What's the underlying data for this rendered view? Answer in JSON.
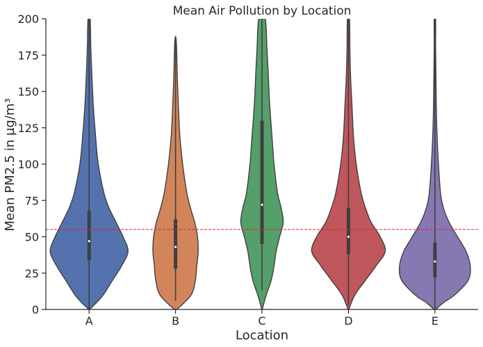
{
  "chart_data": {
    "type": "violin",
    "title": "Mean Air Pollution by Location",
    "xlabel": "Location",
    "ylabel": "Mean PM2.5 in µg/m³",
    "ylim": [
      0,
      200
    ],
    "yticks": [
      0,
      25,
      50,
      75,
      100,
      125,
      150,
      175,
      200
    ],
    "categories": [
      "A",
      "B",
      "C",
      "D",
      "E"
    ],
    "reference_line": {
      "y": 55,
      "color": "#d62728",
      "style": "dashed"
    },
    "grid": false,
    "series": [
      {
        "category": "A",
        "color": "#5472ad",
        "median": 47,
        "q1": 34,
        "q3": 68,
        "whisker_low": 0,
        "whisker_high": 200,
        "density": [
          [
            0,
            0.5
          ],
          [
            5,
            11
          ],
          [
            10,
            20
          ],
          [
            20,
            33
          ],
          [
            30,
            46
          ],
          [
            40,
            55
          ],
          [
            50,
            48
          ],
          [
            60,
            38
          ],
          [
            70,
            28
          ],
          [
            80,
            21
          ],
          [
            100,
            13
          ],
          [
            120,
            9
          ],
          [
            140,
            6
          ],
          [
            160,
            4
          ],
          [
            180,
            2.5
          ],
          [
            200,
            1.5
          ]
        ]
      },
      {
        "category": "B",
        "color": "#d2855a",
        "median": 43,
        "q1": 28,
        "q3": 62,
        "whisker_low": 6,
        "whisker_high": 187,
        "density": [
          [
            0,
            2
          ],
          [
            10,
            22
          ],
          [
            20,
            28
          ],
          [
            30,
            30
          ],
          [
            40,
            32
          ],
          [
            50,
            31
          ],
          [
            60,
            27
          ],
          [
            70,
            21
          ],
          [
            80,
            16
          ],
          [
            100,
            10
          ],
          [
            120,
            6
          ],
          [
            140,
            4
          ],
          [
            160,
            2.5
          ],
          [
            180,
            1.5
          ],
          [
            187,
            0.5
          ]
        ]
      },
      {
        "category": "C",
        "color": "#559f6a",
        "median": 72,
        "q1": 45,
        "q3": 130,
        "whisker_low": 13,
        "whisker_high": 200,
        "density": [
          [
            0,
            0.3
          ],
          [
            10,
            6
          ],
          [
            20,
            13
          ],
          [
            30,
            17
          ],
          [
            40,
            20
          ],
          [
            50,
            25
          ],
          [
            60,
            30
          ],
          [
            70,
            27
          ],
          [
            80,
            22
          ],
          [
            100,
            17
          ],
          [
            120,
            14
          ],
          [
            140,
            11
          ],
          [
            160,
            9
          ],
          [
            180,
            7
          ],
          [
            200,
            4.5
          ]
        ]
      },
      {
        "category": "D",
        "color": "#c0575d",
        "median": 50,
        "q1": 38,
        "q3": 70,
        "whisker_low": 3,
        "whisker_high": 200,
        "density": [
          [
            0,
            0.5
          ],
          [
            10,
            9
          ],
          [
            20,
            24
          ],
          [
            30,
            39
          ],
          [
            40,
            52
          ],
          [
            50,
            45
          ],
          [
            60,
            32
          ],
          [
            70,
            24
          ],
          [
            80,
            18
          ],
          [
            100,
            11
          ],
          [
            120,
            7
          ],
          [
            140,
            5
          ],
          [
            160,
            3
          ],
          [
            180,
            2
          ],
          [
            200,
            1.5
          ]
        ]
      },
      {
        "category": "E",
        "color": "#8778b2",
        "median": 33,
        "q1": 22,
        "q3": 46,
        "whisker_low": 0,
        "whisker_high": 200,
        "density": [
          [
            0,
            1
          ],
          [
            5,
            13
          ],
          [
            10,
            28
          ],
          [
            20,
            47
          ],
          [
            30,
            50
          ],
          [
            40,
            44
          ],
          [
            50,
            32
          ],
          [
            60,
            20
          ],
          [
            70,
            12
          ],
          [
            80,
            8
          ],
          [
            100,
            5
          ],
          [
            120,
            3
          ],
          [
            140,
            2
          ],
          [
            160,
            1.5
          ],
          [
            180,
            1
          ],
          [
            200,
            1
          ]
        ]
      }
    ]
  }
}
